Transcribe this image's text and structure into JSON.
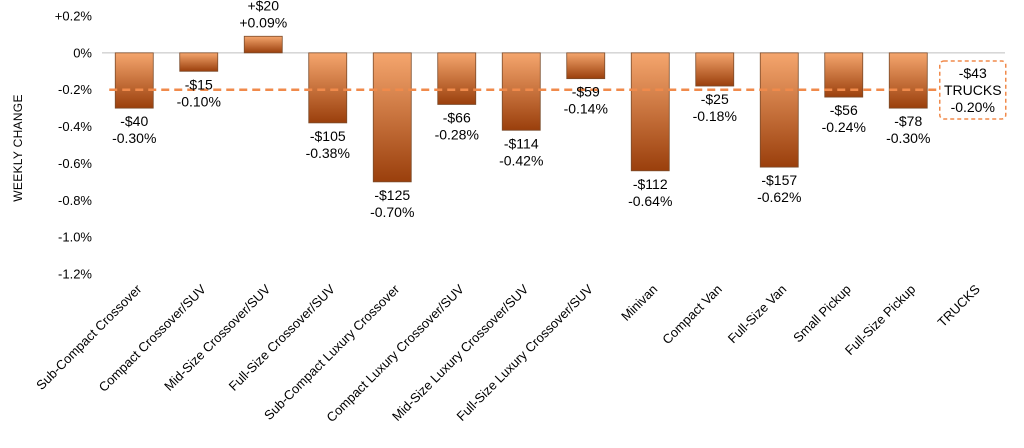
{
  "chart_data": {
    "type": "bar",
    "title": "",
    "xlabel": "",
    "ylabel": "WEEKLY CHANGE",
    "ylim": [
      -1.2,
      0.2
    ],
    "yticks": [
      0.2,
      0,
      -0.2,
      -0.4,
      -0.6,
      -0.8,
      -1.0,
      -1.2
    ],
    "ytick_labels": [
      "+0.2%",
      "0%",
      "-0.2%",
      "-0.4%",
      "-0.6%",
      "-0.8%",
      "-1.0%",
      "-1.2%"
    ],
    "categories": [
      "Sub-Compact Crossover",
      "Compact Crossover/SUV",
      "Mid-Size Crossover/SUV",
      "Full-Size Crossover/SUV",
      "Sub-Compact Luxury Crossover",
      "Compact Luxury Crossover/SUV",
      "Mid-Size Luxury Crossover/SUV",
      "Full-Size Luxury Crossover/SUV",
      "Minivan",
      "Compact Van",
      "Full-Size Van",
      "Small Pickup",
      "Full-Size Pickup",
      "TRUCKS"
    ],
    "values": [
      -0.3,
      -0.1,
      0.09,
      -0.38,
      -0.7,
      -0.28,
      -0.42,
      -0.14,
      -0.64,
      -0.18,
      -0.62,
      -0.24,
      -0.3,
      -0.2
    ],
    "dollar_labels": [
      "-$40",
      "-$15",
      "+$20",
      "-$105",
      "-$125",
      "-$66",
      "-$114",
      "-$59",
      "-$112",
      "-$25",
      "-$157",
      "-$56",
      "-$78",
      "-$43"
    ],
    "percent_labels": [
      "-0.30%",
      "-0.10%",
      "+0.09%",
      "-0.38%",
      "-0.70%",
      "-0.28%",
      "-0.42%",
      "-0.14%",
      "-0.64%",
      "-0.18%",
      "-0.62%",
      "-0.24%",
      "-0.30%",
      "-0.20%"
    ],
    "average": {
      "value": -0.2,
      "name": "TRUCKS",
      "dollar_label": "-$43",
      "percent_label": "-0.20%"
    },
    "colors": {
      "bar_top": "#f5a66e",
      "bar_bottom": "#9a3f0c",
      "bar_stroke": "#7a4a2a",
      "avg_line": "#f08a4b",
      "grid_zero": "#bfbfbf"
    }
  }
}
